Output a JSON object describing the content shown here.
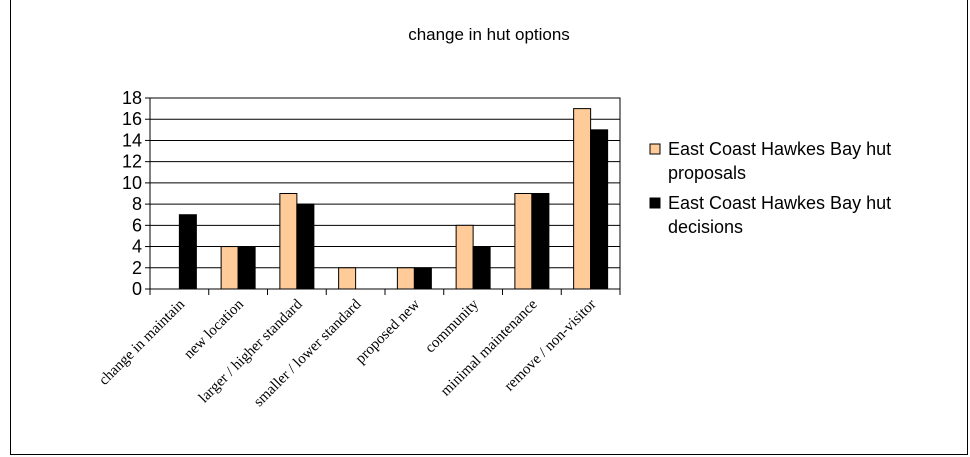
{
  "chart_data": {
    "type": "bar",
    "title": "change in hut options",
    "categories": [
      "change in maintain",
      "new location",
      "larger / higher standard",
      "smaller / lower standard",
      "proposed new",
      "community",
      "minimal maintenance",
      "remove / non-visitor"
    ],
    "series": [
      {
        "name": "East Coast Hawkes Bay hut proposals",
        "color": "#FFCC99",
        "values": [
          0,
          4,
          9,
          2,
          2,
          6,
          9,
          17
        ]
      },
      {
        "name": "East Coast Hawkes Bay hut decisions",
        "color": "#000000",
        "values": [
          7,
          4,
          8,
          0,
          2,
          4,
          9,
          15
        ]
      }
    ],
    "ylim": [
      0,
      18
    ],
    "yticks": [
      0,
      2,
      4,
      6,
      8,
      10,
      12,
      14,
      16,
      18
    ],
    "grid": true,
    "legend": "right"
  }
}
